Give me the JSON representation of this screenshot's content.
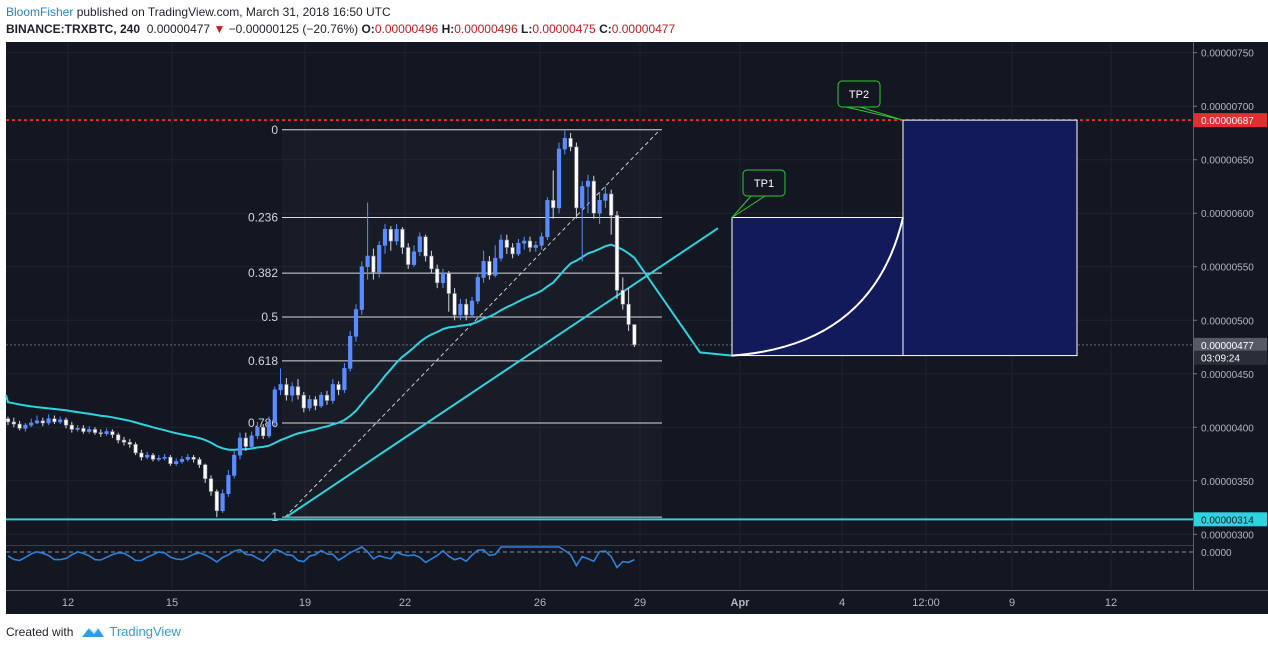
{
  "header": {
    "author": "BloomFisher",
    "published": " published on TradingView.com, March 31, 2018 16:50 UTC",
    "symbol": "BINANCE:TRXBTC, 240",
    "last": "0.00000477",
    "change": "−0.00000125 (−20.76%)",
    "o_label": "O:",
    "o": "0.00000496",
    "h_label": "H:",
    "h": "0.00000496",
    "l_label": "L:",
    "l": "0.00000475",
    "c_label": "C:",
    "c": "0.00000477"
  },
  "footer": {
    "created_with": "Created with",
    "brand": "TradingView"
  },
  "colors": {
    "background": "#131722",
    "candle_up": "#5b8cff",
    "candle_down": "#ffffff",
    "ma_line": "#2fd3e0",
    "trendline": "#2fd3e0",
    "resistance": "#e03030",
    "target_box": "#131a5c",
    "callout_border": "#2ec82e",
    "oscillator": "#2f80d8"
  },
  "chart_data": {
    "type": "candlestick",
    "y_axis": {
      "min": 2.9e-06,
      "max": 7.6e-06,
      "tick_labels": [
        "0.00000750",
        "0.00000700",
        "0.00000650",
        "0.00000600",
        "0.00000550",
        "0.00000500",
        "0.00000450",
        "0.00000400",
        "0.00000350",
        "0.00000300"
      ],
      "tick_values": [
        7.5e-06,
        7e-06,
        6.5e-06,
        6e-06,
        5.5e-06,
        5e-06,
        4.5e-06,
        4e-06,
        3.5e-06,
        3e-06
      ]
    },
    "x_axis": {
      "tick_labels": [
        "12",
        "15",
        "19",
        "22",
        "26",
        "29",
        "Apr",
        "4",
        "12:00",
        "9",
        "12"
      ]
    },
    "price_badges": [
      {
        "label": "0.00000687",
        "value": 6.87e-06,
        "color": "#e03030"
      },
      {
        "label": "0.00000477",
        "value": 4.77e-06,
        "color": "#555a66"
      },
      {
        "label": "03:09:24",
        "value": 4.65e-06,
        "color": "#2a2e39"
      },
      {
        "label": "0.00000314",
        "value": 3.14e-06,
        "color": "#2fd3e0"
      }
    ],
    "fib_levels": [
      {
        "label": "0",
        "value": 6.78e-06
      },
      {
        "label": "0.236",
        "value": 5.96e-06
      },
      {
        "label": "0.382",
        "value": 5.44e-06
      },
      {
        "label": "0.5",
        "value": 5.03e-06
      },
      {
        "label": "0.618",
        "value": 4.62e-06
      },
      {
        "label": "0.786",
        "value": 4.04e-06
      },
      {
        "label": "1",
        "value": 3.16e-06
      }
    ],
    "resistance_level": 6.87e-06,
    "support_level": 3.14e-06,
    "callouts": [
      {
        "label": "TP1",
        "value": 5.96e-06
      },
      {
        "label": "TP2",
        "value": 6.87e-06
      }
    ],
    "oscillator": {
      "label": "0.0000"
    },
    "candles": [
      [
        4.08e-06,
        4.05e-06,
        4.1e-06,
        4.02e-06
      ],
      [
        4.05e-06,
        4.03e-06,
        4.09e-06,
        4e-06
      ],
      [
        4.03e-06,
        3.99e-06,
        4.06e-06,
        3.97e-06
      ],
      [
        3.99e-06,
        4.02e-06,
        4.04e-06,
        3.96e-06
      ],
      [
        4.02e-06,
        4.04e-06,
        4.08e-06,
        4e-06
      ],
      [
        4.04e-06,
        4.06e-06,
        4.11e-06,
        4.03e-06
      ],
      [
        4.06e-06,
        4.04e-06,
        4.09e-06,
        4.01e-06
      ],
      [
        4.04e-06,
        4.08e-06,
        4.12e-06,
        4.02e-06
      ],
      [
        4.08e-06,
        4.05e-06,
        4.11e-06,
        4.03e-06
      ],
      [
        4.05e-06,
        4.07e-06,
        4.1e-06,
        4.03e-06
      ],
      [
        4.07e-06,
        4.02e-06,
        4.09e-06,
        3.99e-06
      ],
      [
        4.02e-06,
        3.98e-06,
        4.05e-06,
        3.95e-06
      ],
      [
        3.98e-06,
        3.99e-06,
        4.02e-06,
        3.96e-06
      ],
      [
        3.99e-06,
        3.96e-06,
        4.02e-06,
        3.94e-06
      ],
      [
        3.96e-06,
        3.98e-06,
        4.01e-06,
        3.94e-06
      ],
      [
        3.98e-06,
        3.95e-06,
        4e-06,
        3.93e-06
      ],
      [
        3.95e-06,
        3.94e-06,
        3.98e-06,
        3.91e-06
      ],
      [
        3.94e-06,
        3.96e-06,
        3.99e-06,
        3.92e-06
      ],
      [
        3.96e-06,
        3.93e-06,
        3.98e-06,
        3.9e-06
      ],
      [
        3.93e-06,
        3.88e-06,
        3.95e-06,
        3.85e-06
      ],
      [
        3.88e-06,
        3.86e-06,
        3.91e-06,
        3.83e-06
      ],
      [
        3.86e-06,
        3.84e-06,
        3.89e-06,
        3.81e-06
      ],
      [
        3.84e-06,
        3.76e-06,
        3.86e-06,
        3.74e-06
      ],
      [
        3.76e-06,
        3.72e-06,
        3.79e-06,
        3.69e-06
      ],
      [
        3.72e-06,
        3.74e-06,
        3.77e-06,
        3.7e-06
      ],
      [
        3.74e-06,
        3.7e-06,
        3.76e-06,
        3.68e-06
      ],
      [
        3.7e-06,
        3.71e-06,
        3.74e-06,
        3.68e-06
      ],
      [
        3.71e-06,
        3.72e-06,
        3.75e-06,
        3.69e-06
      ],
      [
        3.72e-06,
        3.66e-06,
        3.74e-06,
        3.64e-06
      ],
      [
        3.66e-06,
        3.68e-06,
        3.71e-06,
        3.64e-06
      ],
      [
        3.68e-06,
        3.7e-06,
        3.73e-06,
        3.66e-06
      ],
      [
        3.7e-06,
        3.72e-06,
        3.75e-06,
        3.68e-06
      ],
      [
        3.72e-06,
        3.7e-06,
        3.74e-06,
        3.67e-06
      ],
      [
        3.7e-06,
        3.65e-06,
        3.72e-06,
        3.62e-06
      ],
      [
        3.65e-06,
        3.52e-06,
        3.66e-06,
        3.48e-06
      ],
      [
        3.52e-06,
        3.4e-06,
        3.55e-06,
        3.36e-06
      ],
      [
        3.4e-06,
        3.22e-06,
        3.42e-06,
        3.16e-06
      ],
      [
        3.22e-06,
        3.38e-06,
        3.42e-06,
        3.2e-06
      ],
      [
        3.38e-06,
        3.55e-06,
        3.6e-06,
        3.35e-06
      ],
      [
        3.55e-06,
        3.74e-06,
        3.78e-06,
        3.52e-06
      ],
      [
        3.74e-06,
        3.9e-06,
        3.95e-06,
        3.7e-06
      ],
      [
        3.9e-06,
        3.82e-06,
        3.95e-06,
        3.78e-06
      ],
      [
        3.82e-06,
        3.92e-06,
        3.96e-06,
        3.79e-06
      ],
      [
        3.92e-06,
        4e-06,
        4.05e-06,
        3.89e-06
      ],
      [
        4e-06,
        3.92e-06,
        4.03e-06,
        3.89e-06
      ],
      [
        3.92e-06,
        4.05e-06,
        4.1e-06,
        3.9e-06
      ],
      [
        4.05e-06,
        4.35e-06,
        4.38e-06,
        4e-06
      ],
      [
        4.35e-06,
        4.4e-06,
        4.55e-06,
        4.3e-06
      ],
      [
        4.4e-06,
        4.3e-06,
        4.46e-06,
        4.25e-06
      ],
      [
        4.3e-06,
        4.38e-06,
        4.42e-06,
        4.24e-06
      ],
      [
        4.38e-06,
        4.3e-06,
        4.45e-06,
        4.26e-06
      ],
      [
        4.3e-06,
        4.18e-06,
        4.33e-06,
        4.14e-06
      ],
      [
        4.18e-06,
        4.26e-06,
        4.3e-06,
        4.15e-06
      ],
      [
        4.26e-06,
        4.2e-06,
        4.29e-06,
        4.16e-06
      ],
      [
        4.2e-06,
        4.3e-06,
        4.33e-06,
        4.18e-06
      ],
      [
        4.3e-06,
        4.25e-06,
        4.34e-06,
        4.21e-06
      ],
      [
        4.25e-06,
        4.4e-06,
        4.45e-06,
        4.22e-06
      ],
      [
        4.4e-06,
        4.35e-06,
        4.43e-06,
        4.3e-06
      ],
      [
        4.35e-06,
        4.55e-06,
        4.6e-06,
        4.32e-06
      ],
      [
        4.55e-06,
        4.85e-06,
        4.9e-06,
        4.52e-06
      ],
      [
        4.85e-06,
        5.1e-06,
        5.15e-06,
        4.8e-06
      ],
      [
        5.1e-06,
        5.5e-06,
        5.55e-06,
        5.05e-06
      ],
      [
        5.5e-06,
        5.6e-06,
        6.1e-06,
        5.38e-06
      ],
      [
        5.6e-06,
        5.45e-06,
        5.67e-06,
        5.38e-06
      ],
      [
        5.45e-06,
        5.7e-06,
        5.74e-06,
        5.4e-06
      ],
      [
        5.7e-06,
        5.85e-06,
        5.9e-06,
        5.62e-06
      ],
      [
        5.85e-06,
        5.74e-06,
        5.88e-06,
        5.65e-06
      ],
      [
        5.74e-06,
        5.85e-06,
        5.9e-06,
        5.7e-06
      ],
      [
        5.85e-06,
        5.68e-06,
        5.87e-06,
        5.62e-06
      ],
      [
        5.68e-06,
        5.52e-06,
        5.72e-06,
        5.48e-06
      ],
      [
        5.52e-06,
        5.64e-06,
        5.7e-06,
        5.5e-06
      ],
      [
        5.64e-06,
        5.78e-06,
        5.82e-06,
        5.6e-06
      ],
      [
        5.78e-06,
        5.6e-06,
        5.8e-06,
        5.55e-06
      ],
      [
        5.6e-06,
        5.48e-06,
        5.65e-06,
        5.44e-06
      ],
      [
        5.48e-06,
        5.35e-06,
        5.52e-06,
        5.3e-06
      ],
      [
        5.35e-06,
        5.44e-06,
        5.48e-06,
        5.3e-06
      ],
      [
        5.44e-06,
        5.25e-06,
        5.46e-06,
        5.08e-06
      ],
      [
        5.25e-06,
        5.05e-06,
        5.3e-06,
        5e-06
      ],
      [
        5.05e-06,
        5.15e-06,
        5.2e-06,
        5e-06
      ],
      [
        5.15e-06,
        5.05e-06,
        5.2e-06,
        5e-06
      ],
      [
        5.05e-06,
        5.18e-06,
        5.22e-06,
        5.02e-06
      ],
      [
        5.18e-06,
        5.4e-06,
        5.45e-06,
        5.15e-06
      ],
      [
        5.4e-06,
        5.55e-06,
        5.65e-06,
        5.35e-06
      ],
      [
        5.55e-06,
        5.42e-06,
        5.6e-06,
        5.38e-06
      ],
      [
        5.42e-06,
        5.58e-06,
        5.7e-06,
        5.4e-06
      ],
      [
        5.58e-06,
        5.75e-06,
        5.8e-06,
        5.55e-06
      ],
      [
        5.75e-06,
        5.68e-06,
        5.8e-06,
        5.62e-06
      ],
      [
        5.68e-06,
        5.62e-06,
        5.72e-06,
        5.58e-06
      ],
      [
        5.62e-06,
        5.72e-06,
        5.76e-06,
        5.6e-06
      ],
      [
        5.72e-06,
        5.74e-06,
        5.78e-06,
        5.66e-06
      ],
      [
        5.74e-06,
        5.68e-06,
        5.78e-06,
        5.64e-06
      ],
      [
        5.68e-06,
        5.7e-06,
        5.74e-06,
        5.64e-06
      ],
      [
        5.7e-06,
        5.78e-06,
        5.82e-06,
        5.66e-06
      ],
      [
        5.78e-06,
        6.12e-06,
        6.15e-06,
        5.75e-06
      ],
      [
        6.12e-06,
        6.05e-06,
        6.4e-06,
        5.95e-06
      ],
      [
        6.05e-06,
        6.6e-06,
        6.66e-06,
        6e-06
      ],
      [
        6.6e-06,
        6.7e-06,
        6.78e-06,
        6.55e-06
      ],
      [
        6.7e-06,
        6.62e-06,
        6.75e-06,
        6.58e-06
      ],
      [
        6.62e-06,
        6.05e-06,
        6.66e-06,
        5.95e-06
      ],
      [
        6.05e-06,
        6.25e-06,
        6.3e-06,
        5.55e-06
      ],
      [
        6.25e-06,
        6.3e-06,
        6.36e-06,
        6e-06
      ],
      [
        6.3e-06,
        6e-06,
        6.35e-06,
        5.95e-06
      ],
      [
        6e-06,
        6.12e-06,
        6.2e-06,
        5.9e-06
      ],
      [
        6.12e-06,
        6.18e-06,
        6.25e-06,
        6.05e-06
      ],
      [
        6.18e-06,
        5.98e-06,
        6.22e-06,
        5.8e-06
      ],
      [
        5.98e-06,
        5.28e-06,
        6.02e-06,
        5.2e-06
      ],
      [
        5.28e-06,
        5.15e-06,
        5.4e-06,
        5.1e-06
      ],
      [
        5.15e-06,
        4.96e-06,
        5.3e-06,
        4.9e-06
      ],
      [
        4.96e-06,
        4.77e-06,
        4.96e-06,
        4.75e-06
      ]
    ]
  }
}
